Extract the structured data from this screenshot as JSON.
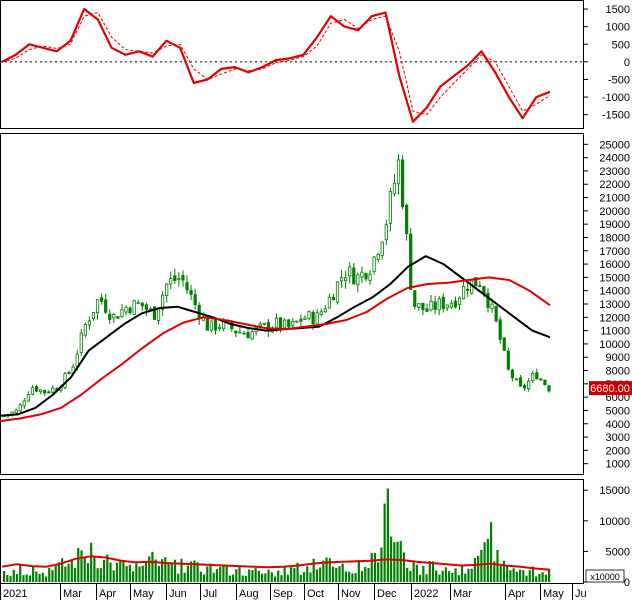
{
  "chart_data": {
    "type": "stock-chart",
    "x_axis": {
      "month_labels": [
        "2021",
        "Mar",
        "Apr",
        "May",
        "Jun",
        "Jul",
        "Aug",
        "Sep",
        "Oct",
        "Nov",
        "Dec",
        "2022",
        "Mar",
        "Apr",
        "May",
        "Ju"
      ]
    },
    "panels": [
      {
        "name": "macd",
        "type": "line",
        "y_ticks": [
          1500,
          1000,
          500,
          0,
          -500,
          -1000,
          -1500
        ],
        "ylim": [
          -1850,
          1700
        ],
        "zero_line": true,
        "colors": {
          "macd": "#e00000",
          "signal": "#e00000"
        },
        "series": [
          {
            "key": "macd",
            "style": "solid",
            "values": [
              0,
              200,
              500,
              400,
              300,
              600,
              1500,
              1200,
              400,
              200,
              300,
              150,
              600,
              400,
              -600,
              -500,
              -200,
              -150,
              -300,
              -150,
              50,
              100,
              200,
              700,
              1300,
              1000,
              900,
              1300,
              1400,
              -400,
              -1700,
              -1300,
              -700,
              -400,
              -100,
              300,
              -300,
              -1000,
              -1600,
              -1000,
              -850
            ]
          },
          {
            "key": "signal",
            "style": "dashed",
            "values": [
              0,
              100,
              350,
              450,
              380,
              500,
              1300,
              1400,
              700,
              350,
              300,
              250,
              450,
              500,
              -200,
              -500,
              -350,
              -200,
              -250,
              -200,
              -20,
              50,
              150,
              450,
              1100,
              1200,
              950,
              1200,
              1300,
              300,
              -1400,
              -1500,
              -1000,
              -600,
              -200,
              200,
              0,
              -700,
              -1400,
              -1200,
              -950
            ]
          }
        ]
      },
      {
        "name": "price",
        "type": "candlestick",
        "y_ticks": [
          25000,
          24000,
          23000,
          22000,
          21000,
          20000,
          19000,
          18000,
          17000,
          16000,
          15000,
          14000,
          13000,
          12000,
          11000,
          10000,
          9000,
          8000,
          7000,
          6000,
          5000,
          4000,
          3000,
          2000,
          1000
        ],
        "ylim": [
          300,
          25700
        ],
        "last_price_label": "6680.00",
        "last_price": 6680,
        "colors": {
          "candles": "#008000",
          "ma_slow": "#e00000",
          "ma_fast": "#000000",
          "last_price_box": "#cc0000"
        },
        "close": [
          4600,
          5000,
          6800,
          6400,
          6800,
          8200,
          11500,
          13500,
          12000,
          12800,
          13000,
          12200,
          14600,
          15000,
          13000,
          11200,
          11500,
          11000,
          10800,
          11200,
          11500,
          11200,
          12000,
          12000,
          13600,
          15500,
          15000,
          16000,
          19000,
          23800,
          13000,
          12500,
          13000,
          13200,
          14500,
          14700,
          12000,
          8000,
          6500,
          7800,
          6680
        ],
        "series": [
          {
            "key": "ma_fast",
            "values": [
              4600,
              4700,
              5200,
              6200,
              7500,
              9500,
              10500,
              11500,
              12300,
              12700,
              12800,
              12400,
              12000,
              11500,
              11200,
              11000,
              11100,
              11200,
              11300,
              12000,
              12800,
              13500,
              14500,
              15800,
              16600,
              16000,
              15000,
              14000,
              13000,
              12000,
              11000,
              10500
            ]
          },
          {
            "key": "ma_slow",
            "values": [
              4200,
              4400,
              4700,
              5200,
              6200,
              7400,
              8500,
              9700,
              10800,
              11600,
              12000,
              11800,
              11500,
              11200,
              11100,
              11300,
              11500,
              11800,
              12400,
              13400,
              14200,
              14500,
              14600,
              14800,
              15000,
              14800,
              14000,
              12900
            ]
          }
        ]
      },
      {
        "name": "volume",
        "type": "bar",
        "unit_label": "x10000",
        "y_ticks": [
          15000,
          10000,
          5000,
          0
        ],
        "ylim": [
          0,
          16500
        ],
        "colors": {
          "bars": "#008000",
          "ma": "#e00000"
        },
        "values": [
          1800,
          3000,
          2500,
          2200,
          4000,
          5500,
          6500,
          4500,
          3500,
          3000,
          5000,
          4000,
          3800,
          3500,
          3000,
          2600,
          2500,
          2300,
          2000,
          2600,
          3200,
          3800,
          4000,
          3000,
          3500,
          4800,
          15800,
          6000,
          2800,
          3500,
          2400,
          2500,
          4000,
          10200,
          3000,
          2000,
          2600,
          2000
        ],
        "ma_values": [
          2500,
          2900,
          2600,
          2500,
          3000,
          3800,
          4200,
          4000,
          3500,
          3200,
          3300,
          3100,
          3000,
          2900,
          2800,
          2700,
          2600,
          2500,
          2400,
          2500,
          2700,
          3000,
          3200,
          3300,
          3400,
          3500,
          3700,
          3600,
          3300,
          3100,
          2900,
          2700,
          2800,
          3000,
          2700,
          2500,
          2200,
          2000
        ]
      }
    ]
  }
}
